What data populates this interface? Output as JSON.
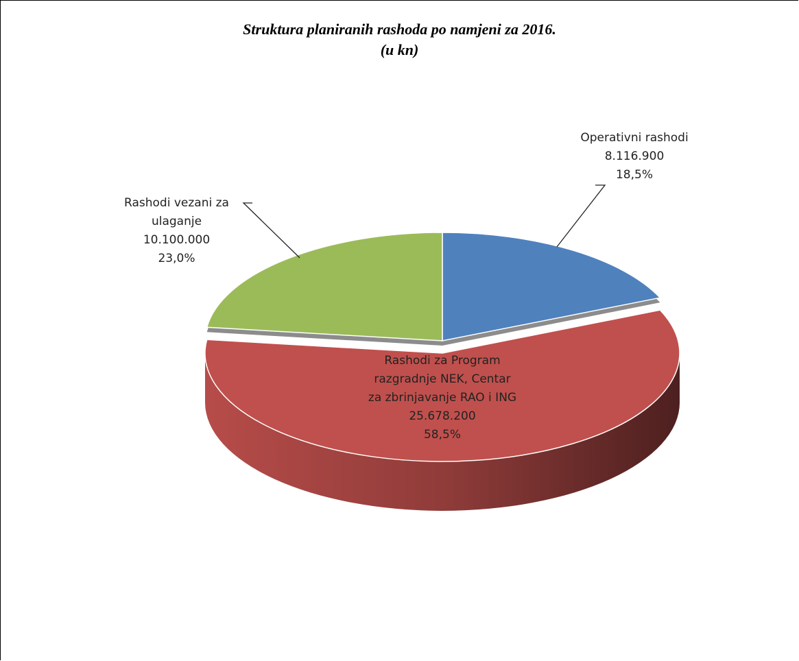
{
  "chart_data": {
    "type": "pie3d",
    "title": "Struktura planiranih rashoda po namjeni za 2016.",
    "subtitle": "(u kn)",
    "categories": [
      "Operativni rashodi",
      "Rashodi za Program razgradnje NEK, Centar za zbrinjavanje RAO i ING",
      "Rashodi vezani za ulaganje"
    ],
    "values": [
      8116900,
      25678200,
      10100000
    ],
    "value_labels": [
      "8.116.900",
      "25.678.200",
      "10.100.000"
    ],
    "percentages": [
      18.5,
      58.5,
      23.0
    ],
    "percentage_labels": [
      "18,5%",
      "58,5%",
      "23,0%"
    ],
    "colors": [
      "#4f81bd",
      "#c0504d",
      "#9bbb59"
    ],
    "exploded": [
      false,
      true,
      false
    ]
  }
}
